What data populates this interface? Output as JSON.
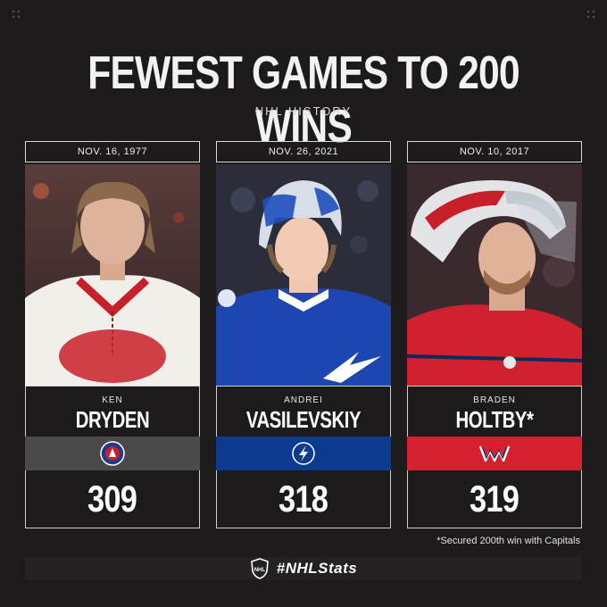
{
  "header": {
    "title": "FEWEST GAMES TO 200 WINS",
    "subtitle": "NHL HISTORY"
  },
  "players": [
    {
      "date": "NOV. 16, 1977",
      "first": "KEN",
      "last": "DRYDEN",
      "games": "309",
      "team_color": "#4a4a4a",
      "team_icon": "hall-of-fame-icon"
    },
    {
      "date": "NOV. 26, 2021",
      "first": "ANDREI",
      "last": "VASILEVSKIY",
      "games": "318",
      "team_color": "#0b3a8e",
      "team_icon": "lightning-logo-icon"
    },
    {
      "date": "NOV. 10, 2017",
      "first": "BRADEN",
      "last": "HOLTBY*",
      "games": "319",
      "team_color": "#d6202f",
      "team_icon": "capitals-logo-icon"
    }
  ],
  "footnote": "*Secured 200th win with Capitals",
  "footer": {
    "hashtag": "#NHLStats",
    "logo_icon": "nhl-shield-icon"
  }
}
